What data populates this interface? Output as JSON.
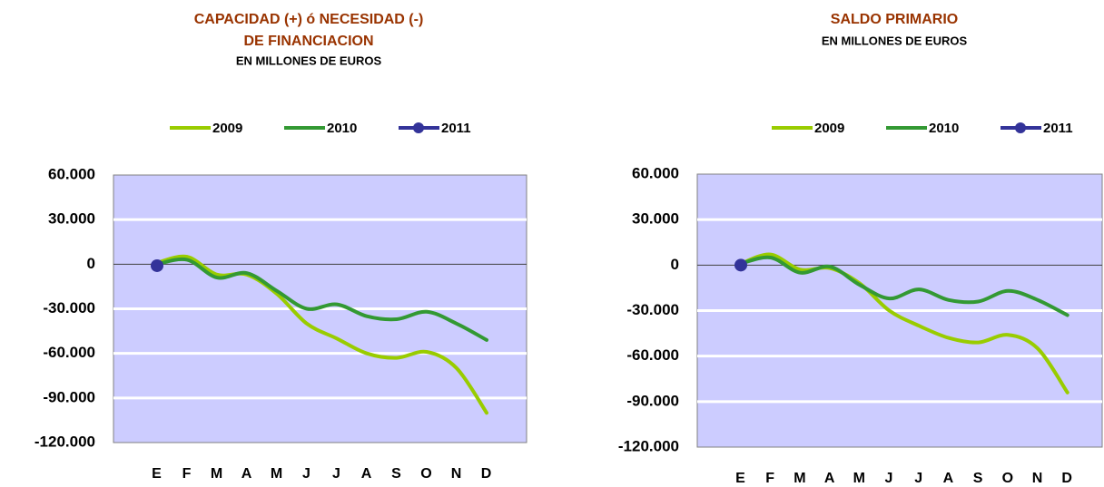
{
  "chart_data": [
    {
      "type": "line",
      "title": [
        "CAPACIDAD (+) ó NECESIDAD (-)",
        "DE FINANCIACION"
      ],
      "subtitle": "EN MILLONES DE EUROS",
      "categories": [
        "E",
        "F",
        "M",
        "A",
        "M",
        "J",
        "J",
        "A",
        "S",
        "O",
        "N",
        "D"
      ],
      "series": [
        {
          "name": "2009",
          "color": "#99cc00",
          "values": [
            1000,
            5000,
            -7000,
            -7000,
            -20000,
            -40000,
            -50000,
            -60000,
            -63000,
            -59000,
            -70000,
            -100000
          ]
        },
        {
          "name": "2010",
          "color": "#339933",
          "values": [
            0,
            3000,
            -9000,
            -6000,
            -18000,
            -30000,
            -27000,
            -35000,
            -37000,
            -32000,
            -40000,
            -51000
          ]
        },
        {
          "name": "2011",
          "color": "#333399",
          "marker": true,
          "values": [
            -1000,
            null,
            null,
            null,
            null,
            null,
            null,
            null,
            null,
            null,
            null,
            null
          ]
        }
      ],
      "ylim": [
        60000,
        -120000
      ],
      "yticks": [
        {
          "value": 60000,
          "label": "60.000"
        },
        {
          "value": 30000,
          "label": "30.000"
        },
        0,
        {
          "value": -30000,
          "label": "-30.000"
        },
        {
          "value": -60000,
          "label": "-60.000"
        },
        {
          "value": -90000,
          "label": "-90.000"
        },
        {
          "value": -120000,
          "label": "-120.000"
        }
      ],
      "grid": true,
      "legend": "top",
      "background": "#ccccff"
    },
    {
      "type": "line",
      "title": [
        "SALDO PRIMARIO"
      ],
      "subtitle": "EN MILLONES DE EUROS",
      "categories": [
        "E",
        "F",
        "M",
        "A",
        "M",
        "J",
        "J",
        "A",
        "S",
        "O",
        "N",
        "D"
      ],
      "series": [
        {
          "name": "2009",
          "color": "#99cc00",
          "values": [
            1000,
            7000,
            -3000,
            -2000,
            -12000,
            -30000,
            -40000,
            -48000,
            -51000,
            -46000,
            -55000,
            -84000
          ]
        },
        {
          "name": "2010",
          "color": "#339933",
          "values": [
            1000,
            5000,
            -5000,
            -1000,
            -13000,
            -22000,
            -16000,
            -23000,
            -24000,
            -17000,
            -23000,
            -33000
          ]
        },
        {
          "name": "2011",
          "color": "#333399",
          "marker": true,
          "values": [
            0,
            null,
            null,
            null,
            null,
            null,
            null,
            null,
            null,
            null,
            null,
            null
          ]
        }
      ],
      "ylim": [
        60000,
        -120000
      ],
      "yticks": [
        {
          "value": 60000,
          "label": "60.000"
        },
        {
          "value": 30000,
          "label": "30.000"
        },
        0,
        {
          "value": -30000,
          "label": "-30.000"
        },
        {
          "value": -60000,
          "label": "-60.000"
        },
        {
          "value": -90000,
          "label": "-90.000"
        },
        {
          "value": -120000,
          "label": "-120.000"
        }
      ],
      "grid": true,
      "legend": "top",
      "background": "#ccccff"
    }
  ]
}
